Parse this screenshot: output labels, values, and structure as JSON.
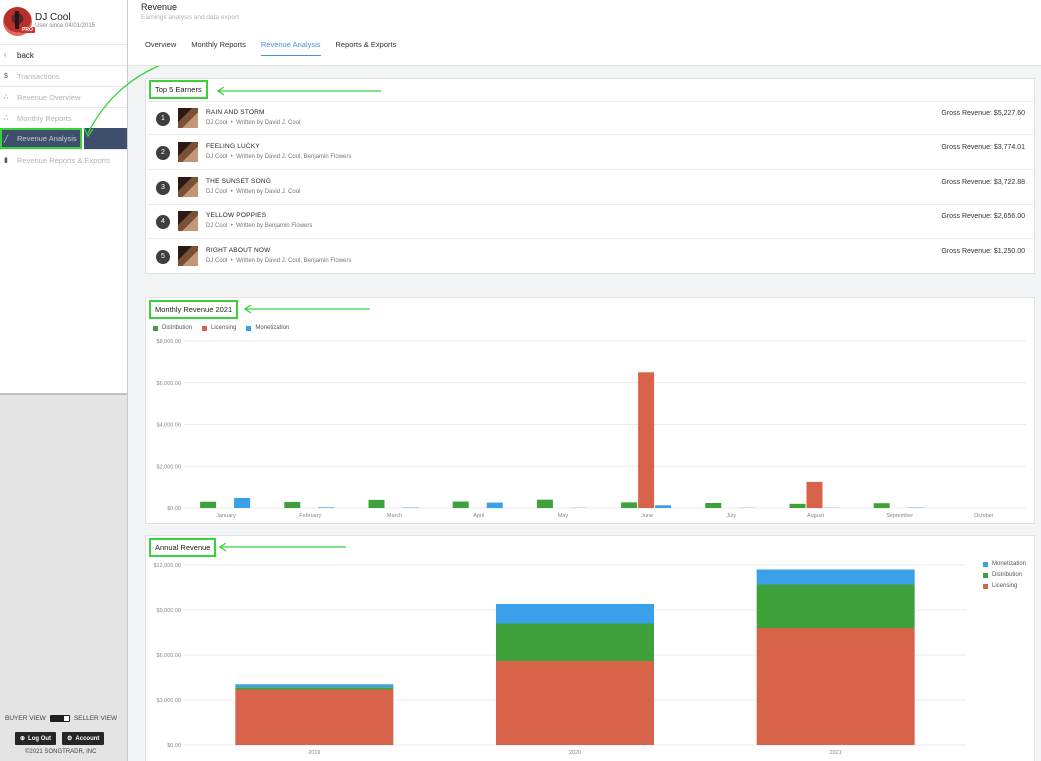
{
  "colors": {
    "distribution": "#3fa13b",
    "licensing": "#d6634a",
    "monetization": "#3aa0ea",
    "highlight": "#39d339",
    "nav_active": "#3e4f6b"
  },
  "profile": {
    "name": "DJ Cool",
    "since": "User since 04/01/2015",
    "badge": "PRO"
  },
  "sidebar": {
    "back_label": "back",
    "items": [
      {
        "icon": "dollar-icon",
        "label": "Transactions"
      },
      {
        "icon": "share-nodes-icon",
        "label": "Revenue Overview"
      },
      {
        "icon": "share-nodes-icon",
        "label": "Monthly Reports"
      },
      {
        "icon": "line-chart-icon",
        "label": "Revenue Analysis",
        "active": true
      },
      {
        "icon": "document-icon",
        "label": "Revenue Reports & Exports"
      }
    ],
    "buyer_view": "BUYER VIEW",
    "seller_view": "SELLER VIEW",
    "logout_label": "Log Out",
    "account_label": "Account",
    "copyright": "©2021 SONGTRADR, INC"
  },
  "header": {
    "title": "Revenue",
    "subtitle": "Earnings analysis and data export",
    "tabs": [
      "Overview",
      "Monthly Reports",
      "Revenue Analysis",
      "Reports & Exports"
    ],
    "active_tab": "Revenue Analysis"
  },
  "top_earners": {
    "title": "Top 5 Earners",
    "items": [
      {
        "rank": "1",
        "song": "RAIN AND STORM",
        "artist": "DJ Cool",
        "writers": "Written by David J. Cool",
        "gross": "Gross Revenue: $5,227.60"
      },
      {
        "rank": "2",
        "song": "FEELING LUCKY",
        "artist": "DJ Cool",
        "writers": "Written by David J. Cool, Benjamin Flowers",
        "gross": "Gross Revenue: $3,774.01"
      },
      {
        "rank": "3",
        "song": "THE SUNSET SONG",
        "artist": "DJ Cool",
        "writers": "Written by David J. Cool",
        "gross": "Gross Revenue: $3,722.88"
      },
      {
        "rank": "4",
        "song": "YELLOW POPPIES",
        "artist": "DJ Cool",
        "writers": "Written by Benjamin Flowers",
        "gross": "Gross Revenue: $2,656.00"
      },
      {
        "rank": "5",
        "song": "RIGHT ABOUT NOW",
        "artist": "DJ Cool",
        "writers": "Written by David J. Cool, Benjamin Flowers",
        "gross": "Gross Revenue: $1,250.00"
      }
    ]
  },
  "monthly_panel_title": "Monthly Revenue 2021",
  "annual_panel_title": "Annual Revenue",
  "chart_data": [
    {
      "type": "bar",
      "title": "Monthly Revenue 2021",
      "categories": [
        "January",
        "February",
        "March",
        "April",
        "May",
        "June",
        "July",
        "August",
        "September",
        "October"
      ],
      "series": [
        {
          "name": "Distribution",
          "values": [
            300,
            290,
            390,
            310,
            400,
            270,
            240,
            200,
            230,
            0
          ]
        },
        {
          "name": "Licensing",
          "values": [
            0,
            0,
            0,
            0,
            0,
            6500,
            0,
            1250,
            0,
            0
          ]
        },
        {
          "name": "Monetization",
          "values": [
            480,
            30,
            20,
            260,
            10,
            130,
            10,
            10,
            20,
            0
          ]
        }
      ],
      "ylim": [
        0,
        8000
      ],
      "yticks": [
        "$0.00",
        "$2,000.00",
        "$4,000.00",
        "$6,000.00",
        "$8,000.00"
      ],
      "ytick_values": [
        0,
        2000,
        4000,
        6000,
        8000
      ],
      "legend": "top-left",
      "grid": true
    },
    {
      "type": "bar",
      "stacked": true,
      "title": "Annual Revenue",
      "categories": [
        "2019",
        "2020",
        "2021"
      ],
      "series": [
        {
          "name": "Licensing",
          "values": [
            3700,
            5600,
            7800
          ]
        },
        {
          "name": "Distribution",
          "values": [
            150,
            2500,
            2900
          ]
        },
        {
          "name": "Monetization",
          "values": [
            200,
            1300,
            1000
          ]
        }
      ],
      "legend_order": [
        "Monetization",
        "Distribution",
        "Licensing"
      ],
      "ylim": [
        0,
        12000
      ],
      "yticks": [
        "$0.00",
        "$3,000.00",
        "$6,000.00",
        "$9,000.00",
        "$12,000.00"
      ],
      "ytick_values": [
        0,
        3000,
        6000,
        9000,
        12000
      ],
      "legend": "top-right",
      "grid": true
    }
  ]
}
